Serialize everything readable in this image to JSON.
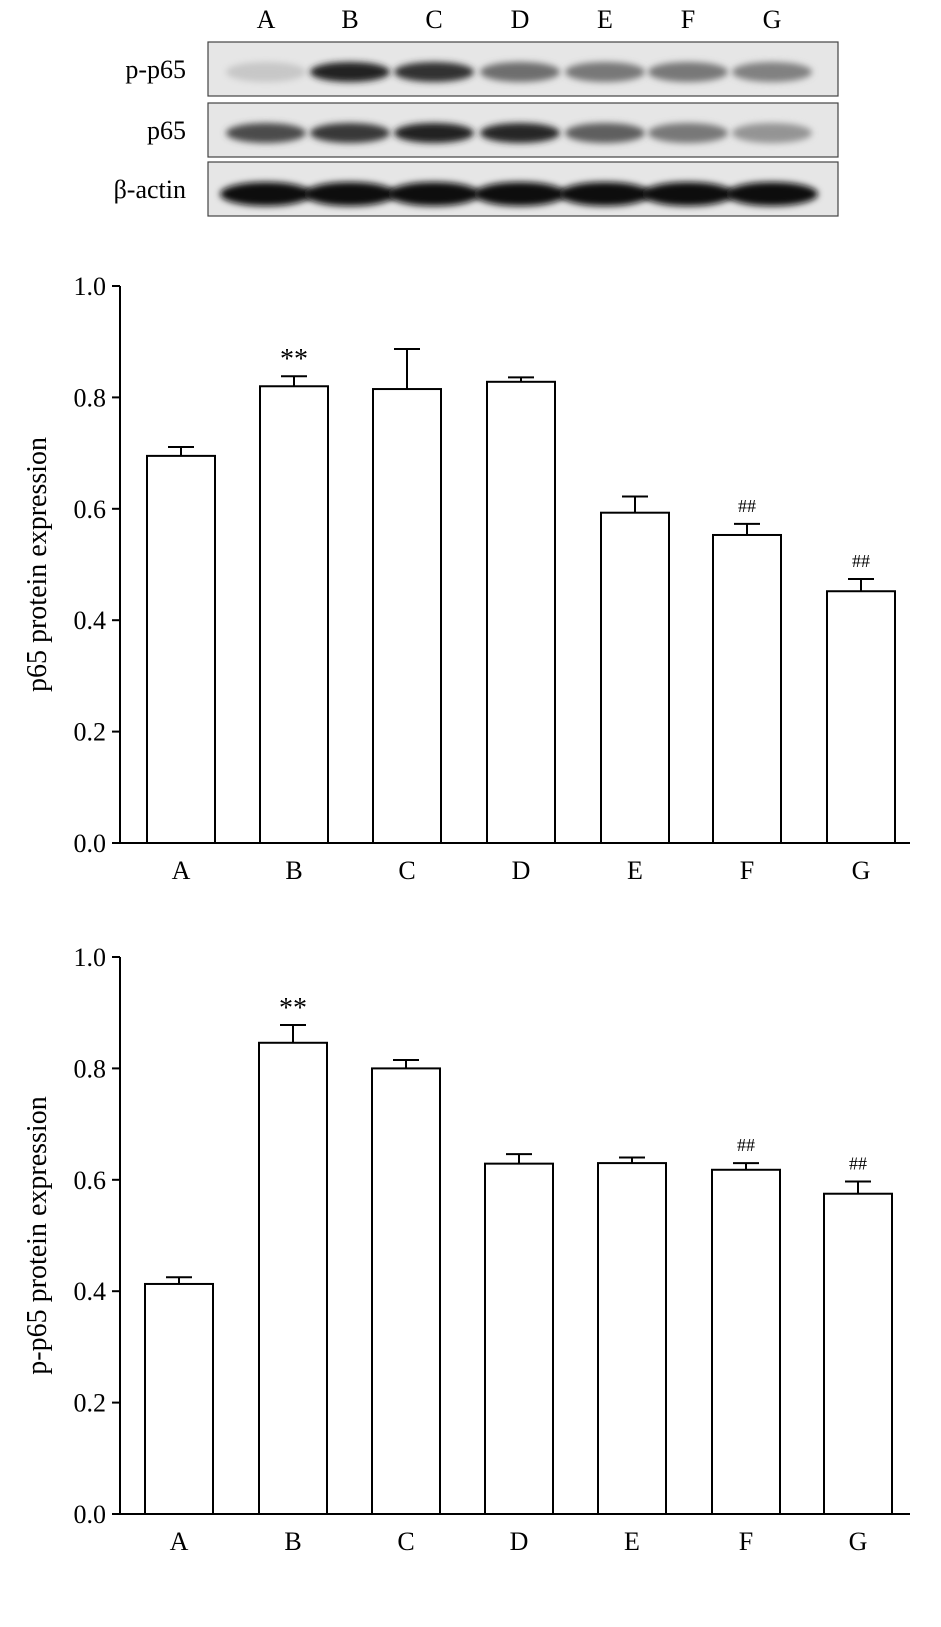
{
  "blot": {
    "lane_labels": [
      "A",
      "B",
      "C",
      "D",
      "E",
      "F",
      "G"
    ],
    "rows": [
      {
        "label": "p-p65",
        "intensities": [
          0.03,
          0.9,
          0.82,
          0.5,
          0.45,
          0.45,
          0.4
        ]
      },
      {
        "label": "p65",
        "intensities": [
          0.68,
          0.78,
          0.9,
          0.88,
          0.58,
          0.45,
          0.3
        ]
      },
      {
        "label": "β-actin",
        "intensities": [
          1,
          1,
          1,
          1,
          1,
          1,
          1
        ]
      }
    ]
  },
  "chart_data": [
    {
      "type": "bar",
      "categories": [
        "A",
        "B",
        "C",
        "D",
        "E",
        "F",
        "G"
      ],
      "values": [
        0.695,
        0.82,
        0.815,
        0.828,
        0.593,
        0.553,
        0.452
      ],
      "errors": [
        0.016,
        0.018,
        0.072,
        0.008,
        0.029,
        0.02,
        0.022
      ],
      "annotations": [
        "",
        "**",
        "",
        "",
        "",
        "##",
        "##"
      ],
      "ylabel": "p65 protein expression",
      "xlabel": "",
      "ylim": [
        0,
        1.0
      ],
      "yticks": [
        "0.0",
        "0.2",
        "0.4",
        "0.6",
        "0.8",
        "1.0"
      ],
      "grid": false
    },
    {
      "type": "bar",
      "categories": [
        "A",
        "B",
        "C",
        "D",
        "E",
        "F",
        "G"
      ],
      "values": [
        0.413,
        0.846,
        0.8,
        0.629,
        0.63,
        0.618,
        0.575
      ],
      "errors": [
        0.012,
        0.032,
        0.015,
        0.017,
        0.01,
        0.012,
        0.022
      ],
      "annotations": [
        "",
        "**",
        "",
        "",
        "",
        "##",
        "##"
      ],
      "ylabel": "p-p65 protein expression",
      "xlabel": "",
      "ylim": [
        0,
        1.0
      ],
      "yticks": [
        "0.0",
        "0.2",
        "0.4",
        "0.6",
        "0.8",
        "1.0"
      ],
      "grid": false
    }
  ]
}
